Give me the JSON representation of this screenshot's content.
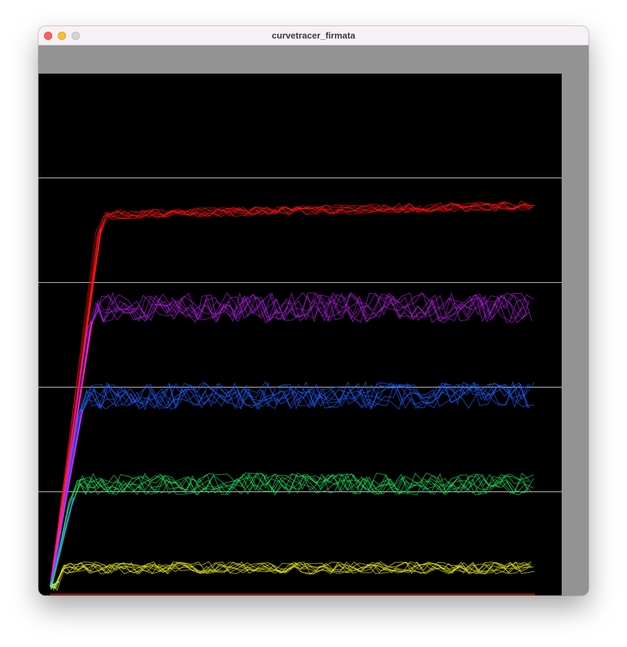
{
  "window": {
    "title": "curvetracer_firmata",
    "controls": {
      "close": "close-button",
      "minimize": "minimize-button",
      "zoom": "zoom-button"
    }
  },
  "plot": {
    "background": "#000000",
    "grid_color": "#c8c8c8",
    "baseline_color": "#b02010",
    "curves": [
      {
        "color": "#ff1010",
        "ramp_color": "#ff1a1a"
      },
      {
        "color": "#b020e0",
        "ramp_color": "#ff20a0"
      },
      {
        "color": "#2060ff",
        "ramp_color": "#e020ff"
      },
      {
        "color": "#20e060",
        "ramp_color": "#4080ff"
      },
      {
        "color": "#e8f010",
        "ramp_color": "#40ffe0"
      }
    ]
  }
}
